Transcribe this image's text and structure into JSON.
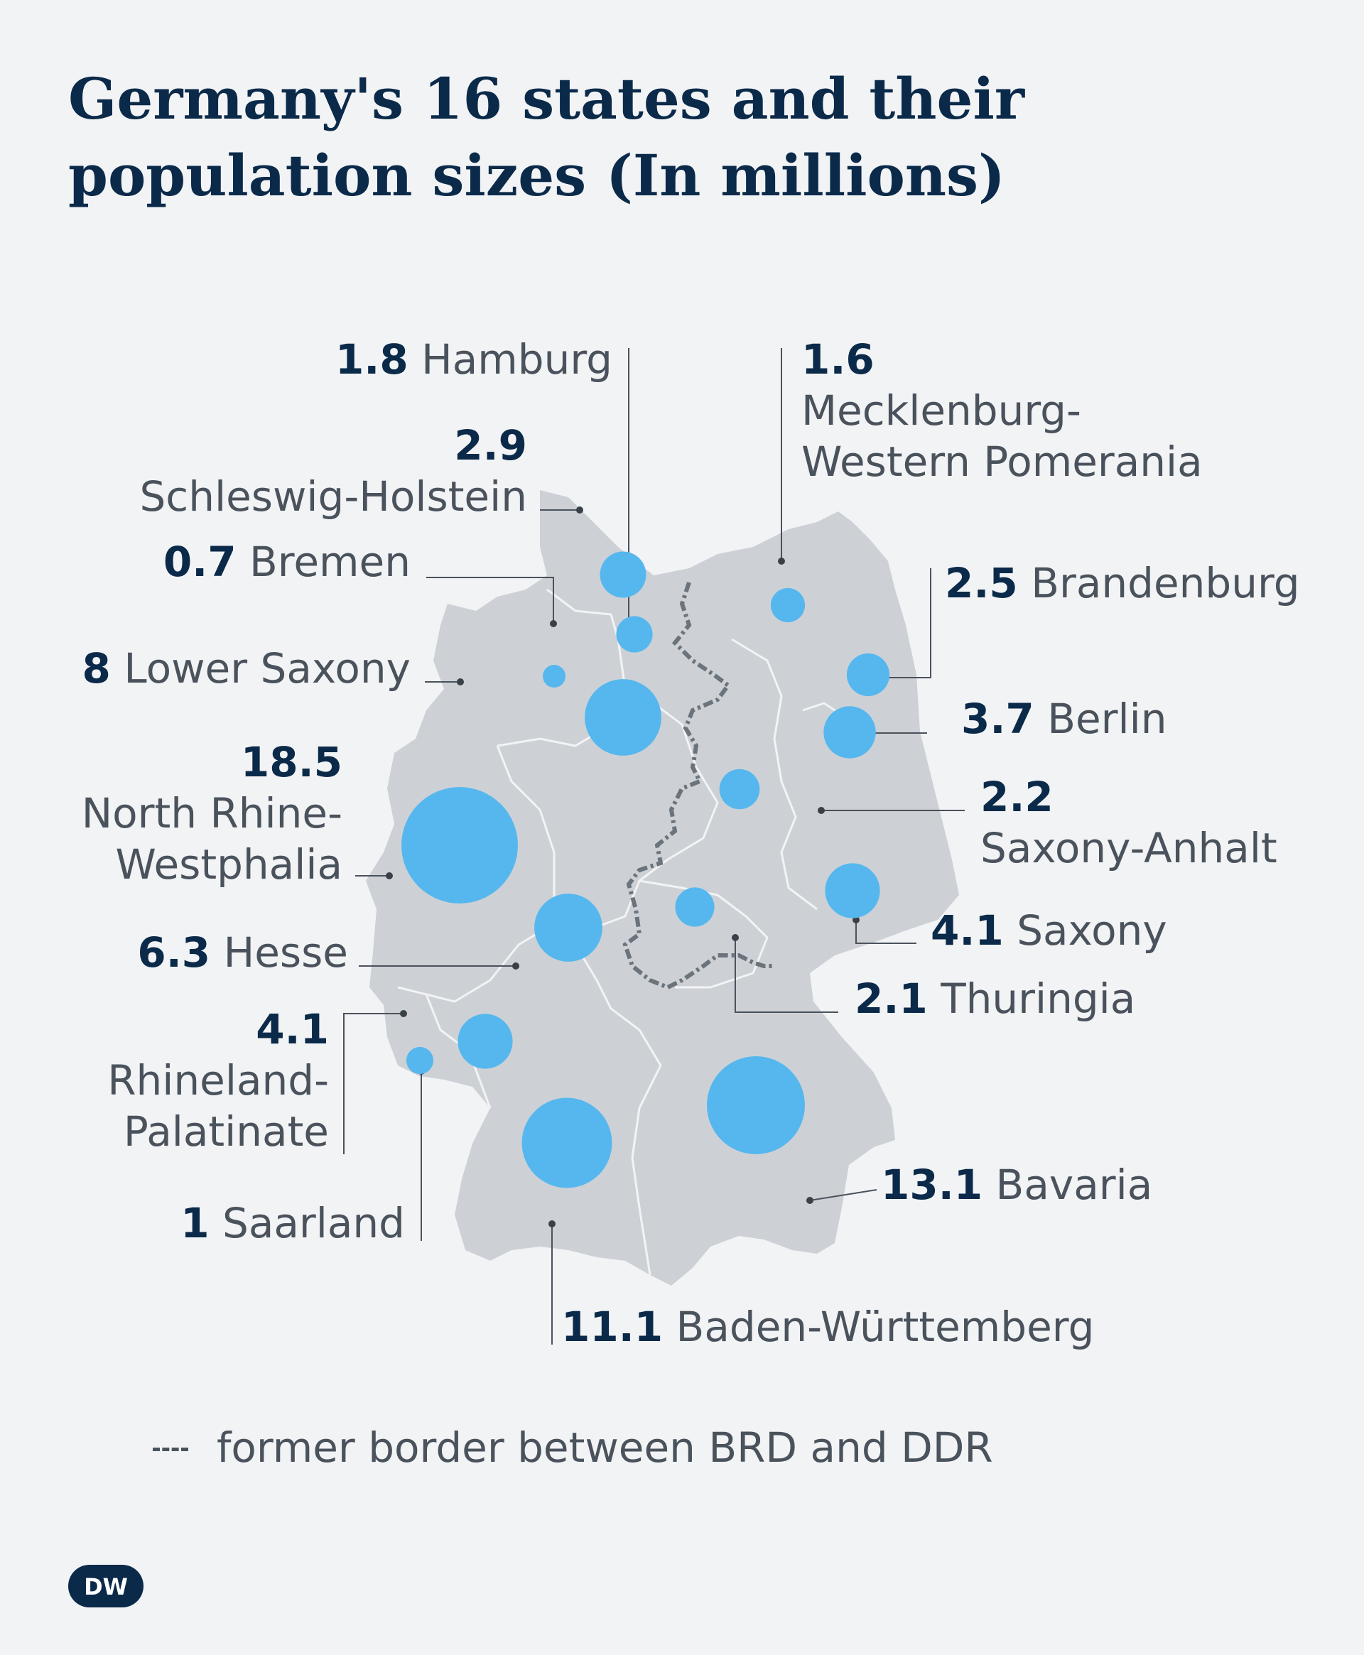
{
  "title_line1": "Germany's 16 states and their",
  "title_line2": "population sizes (In millions)",
  "colors": {
    "background": "#f2f3f5",
    "land": "#cdd1d6",
    "bubble": "#56b7ee",
    "text_value": "#0b2a4a",
    "text_name": "#4a525c",
    "border_line": "#6b737c"
  },
  "states": [
    {
      "id": "hamburg",
      "value": "1.8",
      "name": "Hamburg"
    },
    {
      "id": "mecklenburg",
      "value": "1.6",
      "name_line1": "Mecklenburg-",
      "name_line2": "Western Pomerania"
    },
    {
      "id": "schleswig",
      "value": "2.9",
      "name": "Schleswig-Holstein"
    },
    {
      "id": "bremen",
      "value": "0.7",
      "name": "Bremen"
    },
    {
      "id": "brandenburg",
      "value": "2.5",
      "name": "Brandenburg"
    },
    {
      "id": "lower-saxony",
      "value": "8",
      "name": "Lower Saxony"
    },
    {
      "id": "berlin",
      "value": "3.7",
      "name": "Berlin"
    },
    {
      "id": "nrw",
      "value": "18.5",
      "name_line1": "North Rhine-",
      "name_line2": "Westphalia"
    },
    {
      "id": "saxony-anhalt",
      "value": "2.2",
      "name": "Saxony-Anhalt"
    },
    {
      "id": "saxony",
      "value": "4.1",
      "name": "Saxony"
    },
    {
      "id": "hesse",
      "value": "6.3",
      "name": "Hesse"
    },
    {
      "id": "thuringia",
      "value": "2.1",
      "name": "Thuringia"
    },
    {
      "id": "rhineland",
      "value": "4.1",
      "name_line1": "Rhineland-",
      "name_line2": "Palatinate"
    },
    {
      "id": "bavaria",
      "value": "13.1",
      "name": "Bavaria"
    },
    {
      "id": "saarland",
      "value": "1",
      "name": "Saarland"
    },
    {
      "id": "baden",
      "value": "11.1",
      "name": "Baden-Württemberg"
    }
  ],
  "legend": {
    "text": "former border between BRD and DDR"
  },
  "logo": {
    "text": "DW"
  }
}
